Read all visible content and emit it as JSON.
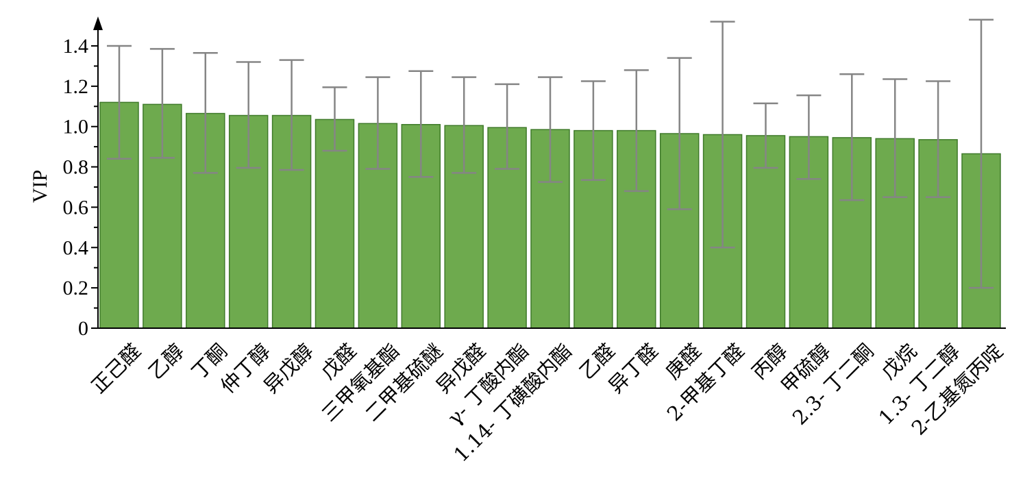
{
  "chart_data": {
    "type": "bar",
    "title": "",
    "xlabel": "",
    "ylabel": "VIP",
    "ylim": [
      0,
      1.5
    ],
    "yticks": [
      "0",
      "0.2",
      "0.4",
      "0.6",
      "0.8",
      "1.0",
      "1.2",
      "1.4"
    ],
    "grid": false,
    "legend": "none",
    "bar_color": "#6eaa4e",
    "bar_edge_color": "#3f7a2a",
    "error_color": "#858585",
    "categories": [
      "正己醛",
      "乙醇",
      "丁酮",
      "仲丁醇",
      "异戊醇",
      "戊醛",
      "三甲氧基酯",
      "二甲基硫醚",
      "异戊醛",
      "γ- 丁酸内酯",
      "1.14- 丁磺酸内酯",
      "乙醛",
      "异丁醛",
      "庚醛",
      "2-甲基丁醛",
      "丙醇",
      "甲硫醇",
      "2.3- 丁二酮",
      "戊烷",
      "1.3- 丁二醇",
      "2-乙基氮丙啶"
    ],
    "values": [
      1.12,
      1.11,
      1.065,
      1.055,
      1.055,
      1.035,
      1.015,
      1.01,
      1.005,
      0.995,
      0.985,
      0.98,
      0.98,
      0.965,
      0.96,
      0.955,
      0.95,
      0.945,
      0.94,
      0.935,
      0.865
    ],
    "err_low": [
      0.84,
      0.845,
      0.77,
      0.795,
      0.785,
      0.88,
      0.79,
      0.75,
      0.77,
      0.79,
      0.725,
      0.735,
      0.68,
      0.59,
      0.4,
      0.795,
      0.74,
      0.635,
      0.65,
      0.65,
      0.2
    ],
    "err_high": [
      1.4,
      1.385,
      1.365,
      1.32,
      1.33,
      1.195,
      1.245,
      1.275,
      1.245,
      1.21,
      1.245,
      1.225,
      1.28,
      1.34,
      1.52,
      1.115,
      1.155,
      1.26,
      1.235,
      1.225,
      1.53
    ]
  }
}
